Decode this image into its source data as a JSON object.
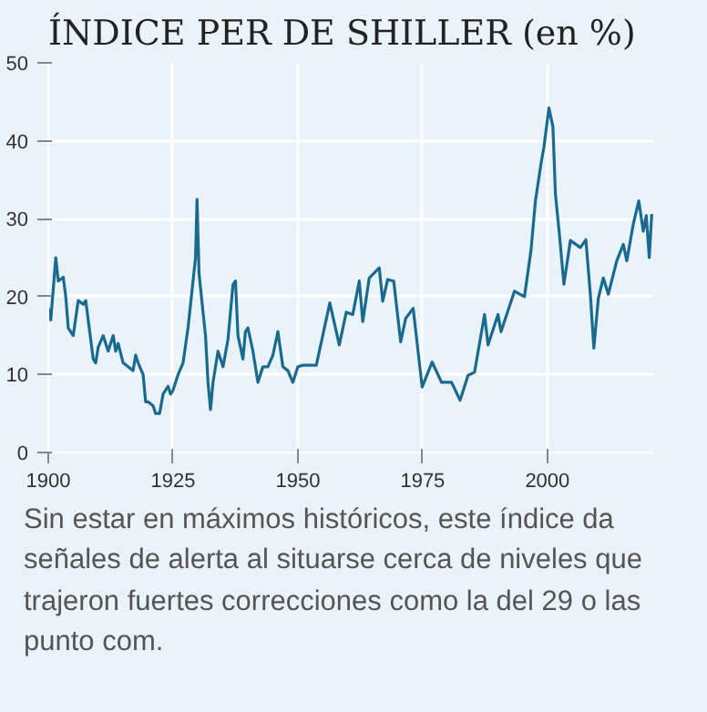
{
  "chart_data": {
    "type": "line",
    "title": "ÍNDICE PER DE SHILLER (en %)",
    "annotations": [
      "Sin estar en máximos históricos, este índice da señales de alerta al situarse cerca de niveles que trajeron fuertes correcciones como la del 29 o las punto com."
    ],
    "xlim": [
      1900,
      2021.2
    ],
    "xticks": [
      1900,
      1925,
      1950,
      1975,
      2000
    ],
    "ylim": [
      0,
      50
    ],
    "yticks": [
      0,
      10,
      20,
      30,
      40,
      50
    ],
    "grid": true,
    "series": [
      {
        "color": "#1a6a90",
        "x": [
          1900,
          1900.5,
          1901.5,
          1902,
          1903,
          1903.5,
          1904,
          1905,
          1906,
          1907,
          1907.5,
          1908,
          1909,
          1909.5,
          1910,
          1911,
          1912,
          1913,
          1913.5,
          1914,
          1915,
          1916,
          1917,
          1917.5,
          1918,
          1919,
          1919.5,
          1920,
          1921,
          1921.5,
          1922.3,
          1923,
          1924,
          1924.5,
          1925,
          1926,
          1927,
          1928,
          1929,
          1929.5,
          1929.8,
          1930.2,
          1931,
          1931.5,
          1932,
          1932.5,
          1933,
          1934,
          1935,
          1936,
          1937,
          1937.5,
          1938,
          1939,
          1939.5,
          1940,
          1941,
          1942,
          1943,
          1944,
          1945,
          1946,
          1947,
          1948,
          1949,
          1950,
          1951,
          1953.7,
          1956.4,
          1958.3,
          1959.7,
          1961,
          1962.3,
          1963,
          1964.3,
          1966.3,
          1967,
          1968,
          1969.2,
          1970.6,
          1971.6,
          1973.1,
          1974.9,
          1976.9,
          1978.8,
          1980.8,
          1982.5,
          1984.1,
          1985.4,
          1987.4,
          1988.1,
          1990.1,
          1990.7,
          1993.4,
          1995.4,
          1996.7,
          1997.6,
          1998.7,
          1999.3,
          2000.3,
          2001.1,
          2001.6,
          2002.4,
          2003.3,
          2004.6,
          2006.6,
          2007.7,
          2008.6,
          2009.3,
          2010.2,
          2011.2,
          2012.2,
          2013.9,
          2015.2,
          2015.9,
          2017.2,
          2018.3,
          2019.2,
          2019.8,
          2020.4,
          2020.9
        ],
        "values": [
          18.5,
          17,
          25,
          22,
          22.5,
          20,
          16,
          15,
          19.5,
          19,
          19.5,
          17,
          12,
          11.5,
          13.5,
          15,
          13,
          15,
          13,
          14,
          11.5,
          11,
          10.5,
          12.5,
          11.5,
          10,
          6.5,
          6.5,
          6,
          5,
          5,
          7.5,
          8.5,
          7.5,
          8,
          10,
          11.5,
          16,
          22,
          25,
          32.5,
          23,
          18,
          15,
          9,
          5.5,
          9,
          13,
          11,
          14.5,
          21.5,
          22,
          15,
          12,
          15.5,
          16,
          13,
          9,
          11,
          11,
          12.5,
          15.5,
          11,
          10.5,
          9,
          11,
          11.2,
          11.2,
          19.2,
          13.8,
          18,
          17.7,
          22,
          16.8,
          22.4,
          23.7,
          19.4,
          22.2,
          22,
          14.2,
          17.2,
          18.5,
          8.4,
          11.6,
          9,
          9,
          6.7,
          9.9,
          10.3,
          17.7,
          13.8,
          17.7,
          15.5,
          20.7,
          20,
          25.9,
          32.3,
          37,
          39.2,
          44.2,
          41.8,
          33.2,
          28,
          21.6,
          27.2,
          26.3,
          27.3,
          20.3,
          13.4,
          19.8,
          22.4,
          20.3,
          24.6,
          26.7,
          24.6,
          29.3,
          32.3,
          28.4,
          30.4,
          25,
          30.6
        ]
      }
    ]
  }
}
